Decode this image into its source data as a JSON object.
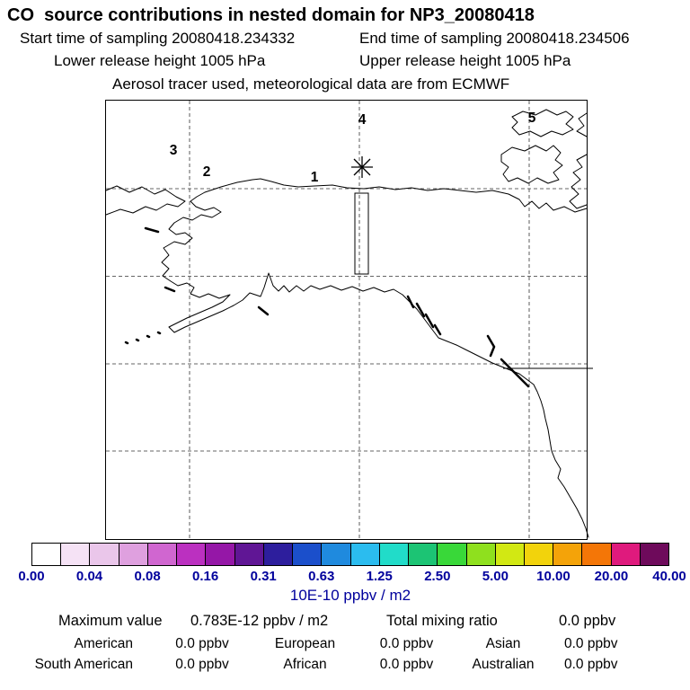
{
  "header": {
    "title": "CO  source contributions in nested domain for NP3_20080418",
    "start_time": "Start time of sampling 20080418.234332",
    "end_time": "End time of sampling 20080418.234506",
    "lower_release": "Lower release height 1005 hPa",
    "upper_release": "Upper release height 1005 hPa",
    "tracer_info": "Aerosol tracer used, meteorological data are from ECMWF"
  },
  "map": {
    "sites": [
      {
        "label": "1"
      },
      {
        "label": "2"
      },
      {
        "label": "3"
      },
      {
        "label": "4"
      },
      {
        "label": "5"
      }
    ]
  },
  "colorbar": {
    "tick_labels": [
      "0.00",
      "0.04",
      "0.08",
      "0.16",
      "0.31",
      "0.63",
      "1.25",
      "2.50",
      "5.00",
      "10.00",
      "20.00",
      "40.00"
    ],
    "colors": [
      "#ffffff",
      "#f5e2f5",
      "#eac6ea",
      "#dfa0df",
      "#d066d0",
      "#bb30c0",
      "#9517a7",
      "#601695",
      "#2d1e9d",
      "#1b4fcb",
      "#1f8ade",
      "#2bbcef",
      "#21dcc9",
      "#1cc474",
      "#39d839",
      "#8fe01e",
      "#d2e813",
      "#f2d30c",
      "#f4a309",
      "#f47607",
      "#df1a7d",
      "#6e0a5b"
    ],
    "units_label": "10E-10 ppbv / m2",
    "tick_color": "#00009c"
  },
  "stats": {
    "max_label": "Maximum value",
    "max_value": "0.783E-12 ppbv / m2",
    "total_label": "Total mixing ratio",
    "total_value": "0.0 ppbv",
    "contributions": [
      {
        "region": "American",
        "value": "0.0 ppbv"
      },
      {
        "region": "European",
        "value": "0.0 ppbv"
      },
      {
        "region": "Asian",
        "value": "0.0 ppbv"
      },
      {
        "region": "South American",
        "value": "0.0 ppbv"
      },
      {
        "region": "African",
        "value": "0.0 ppbv"
      },
      {
        "region": "Australian",
        "value": "0.0 ppbv"
      }
    ]
  }
}
